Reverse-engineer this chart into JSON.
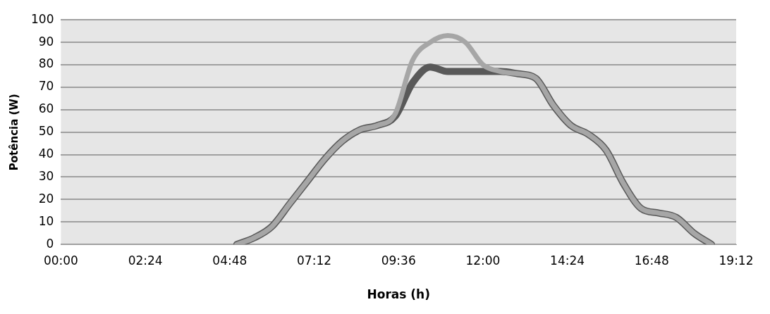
{
  "chart_data": {
    "type": "line",
    "xlabel": "Horas (h)",
    "ylabel": "Potência (W)",
    "xlim": [
      0,
      19.2
    ],
    "xticks": [
      {
        "value": 0,
        "label": "00:00"
      },
      {
        "value": 2.4,
        "label": "02:24"
      },
      {
        "value": 4.8,
        "label": "04:48"
      },
      {
        "value": 7.2,
        "label": "07:12"
      },
      {
        "value": 9.6,
        "label": "09:36"
      },
      {
        "value": 12,
        "label": "12:00"
      },
      {
        "value": 14.4,
        "label": "14:24"
      },
      {
        "value": 16.8,
        "label": "16:48"
      },
      {
        "value": 19.2,
        "label": "19:12"
      }
    ],
    "ylim": [
      0,
      100
    ],
    "yticks": [
      0,
      10,
      20,
      30,
      40,
      50,
      60,
      70,
      80,
      90,
      100
    ],
    "grid": "y",
    "legend": false,
    "marker": "none",
    "line_style": "solid",
    "series": [
      {
        "color": "#595959",
        "x": [
          5,
          5.5,
          6,
          6.5,
          7,
          7.5,
          8,
          8.5,
          9,
          9.5,
          10,
          10.5,
          11,
          11.5,
          12,
          12.5,
          13,
          13.5,
          14,
          14.5,
          15,
          15.5,
          16,
          16.5,
          17,
          17.5,
          18,
          18.5
        ],
        "values": [
          0,
          3,
          8,
          18,
          28,
          38,
          46,
          51,
          53,
          57,
          72,
          79,
          77,
          77,
          77,
          77,
          76,
          74,
          62,
          53,
          49,
          42,
          27,
          16,
          14,
          12,
          5,
          0
        ]
      },
      {
        "color": "#a6a6a6",
        "x": [
          5,
          5.5,
          6,
          6.5,
          7,
          7.5,
          8,
          8.5,
          9,
          9.5,
          10,
          10.5,
          11,
          11.5,
          12,
          12.5,
          13,
          13.5,
          14,
          14.5,
          15,
          15.5,
          16,
          16.5,
          17,
          17.5,
          18,
          18.5
        ],
        "values": [
          0,
          3,
          8,
          18,
          28,
          38,
          46,
          51,
          53,
          58,
          82,
          90,
          93,
          90,
          80,
          77,
          76,
          74,
          62,
          53,
          49,
          42,
          27,
          16,
          14,
          12,
          5,
          0
        ]
      }
    ]
  }
}
